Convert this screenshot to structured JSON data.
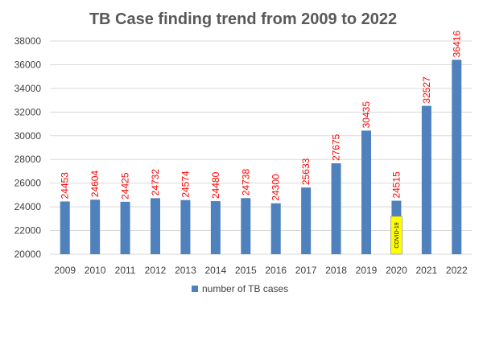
{
  "chart_data": {
    "type": "bar",
    "title": "TB Case finding trend from 2009 to 2022",
    "categories": [
      "2009",
      "2010",
      "2011",
      "2012",
      "2013",
      "2014",
      "2015",
      "2016",
      "2017",
      "2018",
      "2019",
      "2020",
      "2021",
      "2022"
    ],
    "series": [
      {
        "name": "number of TB cases",
        "values": [
          24453,
          24604,
          24425,
          24732,
          24574,
          24480,
          24738,
          24300,
          25633,
          27675,
          30435,
          24515,
          32527,
          36416
        ],
        "color": "#4f81bd"
      }
    ],
    "data_labels": [
      "24453",
      "24604",
      "24425",
      "24732",
      "24574",
      "24480",
      "24738",
      "24300",
      "25633",
      "27675",
      "30435",
      "24515",
      "32527",
      "36416"
    ],
    "data_label_color": "#ff0000",
    "ylim": [
      20000,
      38000
    ],
    "yticks": [
      20000,
      22000,
      24000,
      26000,
      28000,
      30000,
      32000,
      34000,
      36000,
      38000
    ],
    "ytick_labels": [
      "20000",
      "22000",
      "24000",
      "26000",
      "28000",
      "30000",
      "32000",
      "34000",
      "36000",
      "38000"
    ],
    "grid": true,
    "legend_position": "bottom",
    "annotations": [
      {
        "category": "2020",
        "text": "COVID-19",
        "y_range": [
          20000,
          23200
        ],
        "fill": "#ffff00"
      }
    ]
  }
}
